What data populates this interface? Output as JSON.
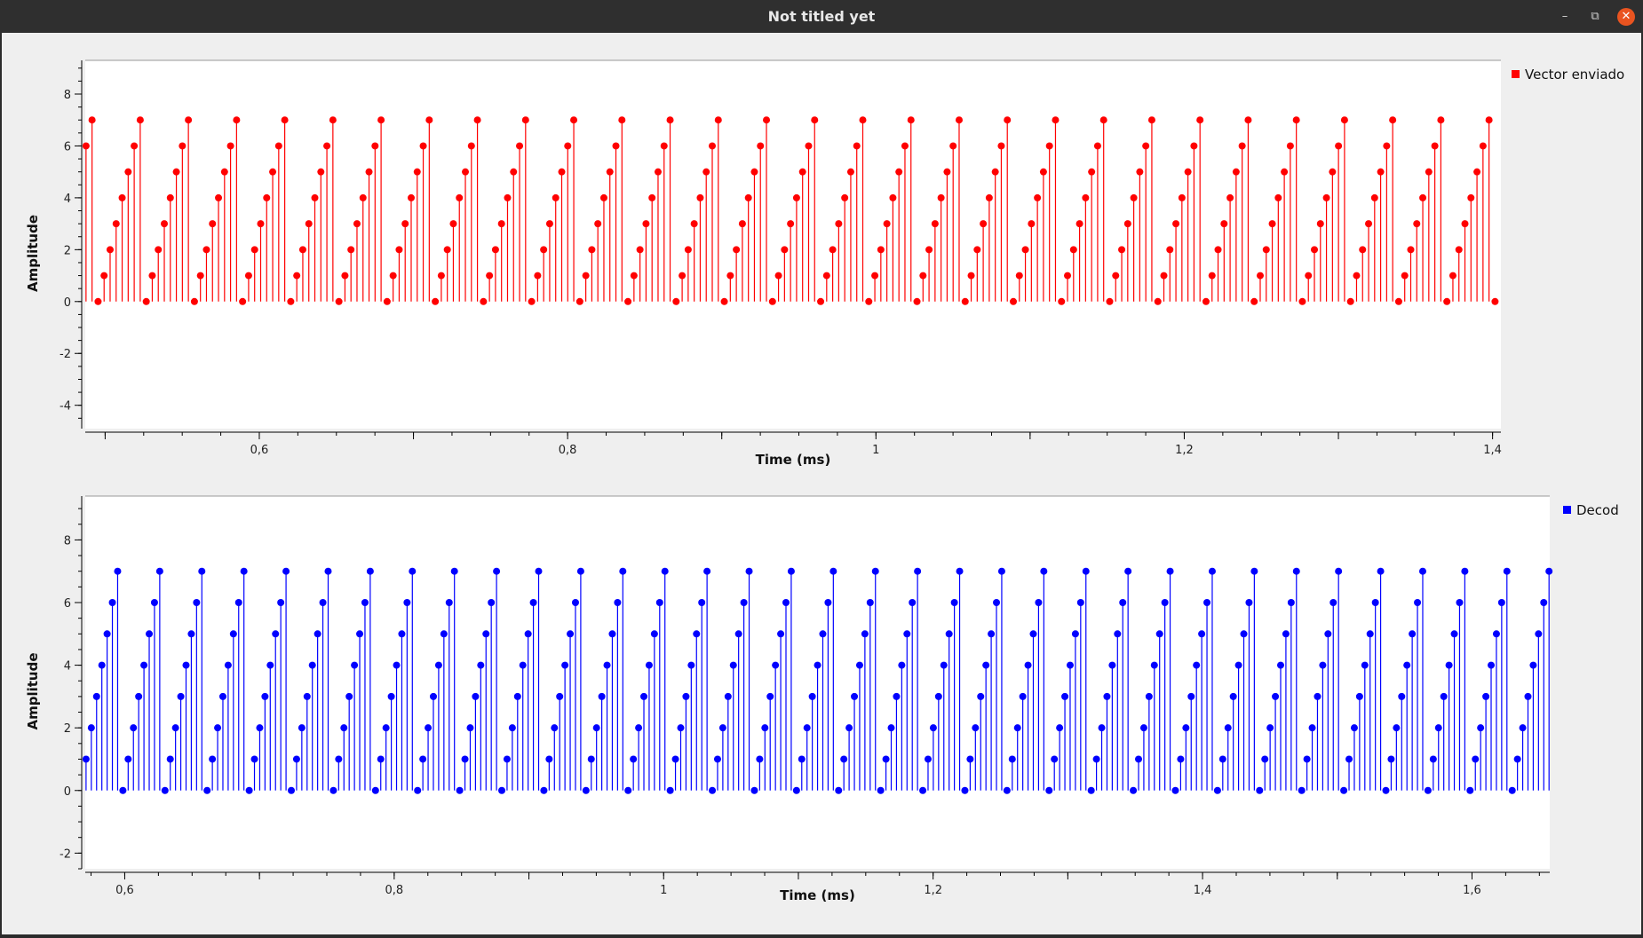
{
  "window": {
    "title": "Not titled yet",
    "minimize_icon": "minimize-icon",
    "maximize_icon": "restore-icon",
    "close_icon": "close-icon"
  },
  "chart_data": [
    {
      "type": "stem",
      "legend": "Vector enviado",
      "legend_position": "top-right",
      "color": "#ff0000",
      "xlabel": "Time (ms)",
      "ylabel": "Amplitude",
      "xlim": [
        0.4871,
        1.4054
      ],
      "ylim": [
        -4.9,
        9.3
      ],
      "xticks": [
        0.6,
        0.8,
        1,
        1.2,
        1.4
      ],
      "xtick_labels": [
        "0,6",
        "0,8",
        "1",
        "1,2",
        "1,4"
      ],
      "yticks": [
        8,
        6,
        4,
        2,
        0,
        -2,
        -4
      ],
      "ytick_labels": [
        "8",
        "6",
        "4",
        "2",
        "0",
        "-2",
        "-4"
      ],
      "sample_interval_ms": 0.003906,
      "x_start": 0.4876,
      "pattern": [
        6,
        7,
        0,
        1,
        2,
        3,
        4,
        5
      ],
      "sample_count": 237
    },
    {
      "type": "stem",
      "legend": "Decod",
      "legend_position": "top-right",
      "color": "#0000ff",
      "xlabel": "Time (ms)",
      "ylabel": "Amplitude",
      "xlim": [
        0.5707,
        1.6577
      ],
      "ylim": [
        -2.5,
        9.4
      ],
      "xticks": [
        0.6,
        0.8,
        1,
        1.2,
        1.4,
        1.6
      ],
      "xtick_labels": [
        "0,6",
        "0,8",
        "1",
        "1,2",
        "1,4",
        "1,6"
      ],
      "yticks": [
        8,
        6,
        4,
        2,
        0,
        -2
      ],
      "ytick_labels": [
        "8",
        "6",
        "4",
        "2",
        "0",
        "-2"
      ],
      "sample_interval_ms": 0.003906,
      "x_start": 0.5713,
      "pattern": [
        1,
        2,
        3,
        4,
        5,
        6,
        7,
        0
      ],
      "sample_count": 279
    }
  ]
}
